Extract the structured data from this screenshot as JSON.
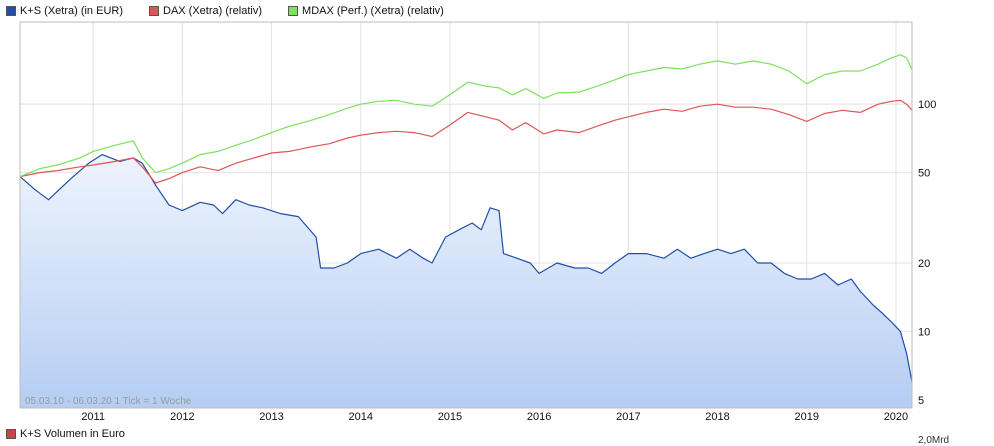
{
  "legend": [
    {
      "label": "K+S (Xetra) (in EUR)",
      "color": "#1f4fa6"
    },
    {
      "label": "DAX (Xetra) (relativ)",
      "color": "#e05555"
    },
    {
      "label": "MDAX (Perf.) (Xetra) (relativ)",
      "color": "#7ee05f"
    }
  ],
  "footnote": "05.03.10 - 06.03.20   1 Tick = 1 Woche",
  "volume_legend": {
    "label": "K+S Volumen in Euro",
    "color": "#c94444"
  },
  "volume_axis_tick": "2,0Mrd",
  "chart_data": {
    "type": "line",
    "y_scale": "log",
    "ylim": [
      4.6,
      230
    ],
    "y_ticks": [
      {
        "value": 5,
        "label": "5"
      },
      {
        "value": 10,
        "label": "10"
      },
      {
        "value": 20,
        "label": "20"
      },
      {
        "value": 50,
        "label": "50"
      },
      {
        "value": 100,
        "label": "100"
      }
    ],
    "xlim": [
      2010.18,
      2020.18
    ],
    "x_ticks": [
      {
        "value": 2011.0,
        "label": "2011"
      },
      {
        "value": 2012.0,
        "label": "2012"
      },
      {
        "value": 2013.0,
        "label": "2013"
      },
      {
        "value": 2014.0,
        "label": "2014"
      },
      {
        "value": 2015.0,
        "label": "2015"
      },
      {
        "value": 2016.0,
        "label": "2016"
      },
      {
        "value": 2017.0,
        "label": "2017"
      },
      {
        "value": 2018.0,
        "label": "2018"
      },
      {
        "value": 2019.0,
        "label": "2019"
      },
      {
        "value": 2020.0,
        "label": "2020"
      }
    ],
    "series": [
      {
        "name": "K+S (Xetra) (in EUR)",
        "color": "#1f4fa6",
        "area": true,
        "points": [
          [
            2010.18,
            48
          ],
          [
            2010.35,
            42
          ],
          [
            2010.5,
            38
          ],
          [
            2010.75,
            47
          ],
          [
            2010.95,
            55
          ],
          [
            2011.1,
            60
          ],
          [
            2011.3,
            56
          ],
          [
            2011.45,
            58
          ],
          [
            2011.55,
            55
          ],
          [
            2011.7,
            44
          ],
          [
            2011.85,
            36
          ],
          [
            2012.0,
            34
          ],
          [
            2012.2,
            37
          ],
          [
            2012.35,
            36
          ],
          [
            2012.45,
            33
          ],
          [
            2012.6,
            38
          ],
          [
            2012.75,
            36
          ],
          [
            2012.9,
            35
          ],
          [
            2013.1,
            33
          ],
          [
            2013.3,
            32
          ],
          [
            2013.5,
            26
          ],
          [
            2013.55,
            19
          ],
          [
            2013.7,
            19
          ],
          [
            2013.85,
            20
          ],
          [
            2014.0,
            22
          ],
          [
            2014.2,
            23
          ],
          [
            2014.4,
            21
          ],
          [
            2014.55,
            23
          ],
          [
            2014.7,
            21
          ],
          [
            2014.8,
            20
          ],
          [
            2014.95,
            26
          ],
          [
            2015.1,
            28
          ],
          [
            2015.25,
            30
          ],
          [
            2015.35,
            28
          ],
          [
            2015.45,
            35
          ],
          [
            2015.55,
            34
          ],
          [
            2015.6,
            22
          ],
          [
            2015.75,
            21
          ],
          [
            2015.9,
            20
          ],
          [
            2016.0,
            18
          ],
          [
            2016.2,
            20
          ],
          [
            2016.4,
            19
          ],
          [
            2016.55,
            19
          ],
          [
            2016.7,
            18
          ],
          [
            2016.85,
            20
          ],
          [
            2017.0,
            22
          ],
          [
            2017.2,
            22
          ],
          [
            2017.4,
            21
          ],
          [
            2017.55,
            23
          ],
          [
            2017.7,
            21
          ],
          [
            2017.85,
            22
          ],
          [
            2018.0,
            23
          ],
          [
            2018.15,
            22
          ],
          [
            2018.3,
            23
          ],
          [
            2018.45,
            20
          ],
          [
            2018.6,
            20
          ],
          [
            2018.75,
            18
          ],
          [
            2018.9,
            17
          ],
          [
            2019.05,
            17
          ],
          [
            2019.2,
            18
          ],
          [
            2019.35,
            16
          ],
          [
            2019.5,
            17
          ],
          [
            2019.6,
            15
          ],
          [
            2019.75,
            13
          ],
          [
            2019.85,
            12
          ],
          [
            2019.95,
            11
          ],
          [
            2020.05,
            10
          ],
          [
            2020.12,
            8
          ],
          [
            2020.18,
            6
          ]
        ]
      },
      {
        "name": "DAX (Xetra) (relativ)",
        "color": "#e05555",
        "area": false,
        "points": [
          [
            2010.18,
            48
          ],
          [
            2010.4,
            50
          ],
          [
            2010.6,
            51
          ],
          [
            2010.85,
            53
          ],
          [
            2011.0,
            54
          ],
          [
            2011.25,
            56
          ],
          [
            2011.45,
            58
          ],
          [
            2011.55,
            53
          ],
          [
            2011.7,
            45
          ],
          [
            2011.85,
            47
          ],
          [
            2012.0,
            50
          ],
          [
            2012.2,
            53
          ],
          [
            2012.4,
            51
          ],
          [
            2012.6,
            55
          ],
          [
            2012.8,
            58
          ],
          [
            2013.0,
            61
          ],
          [
            2013.2,
            62
          ],
          [
            2013.45,
            65
          ],
          [
            2013.65,
            67
          ],
          [
            2013.85,
            71
          ],
          [
            2014.0,
            73
          ],
          [
            2014.2,
            75
          ],
          [
            2014.4,
            76
          ],
          [
            2014.6,
            75
          ],
          [
            2014.8,
            72
          ],
          [
            2015.0,
            81
          ],
          [
            2015.2,
            92
          ],
          [
            2015.4,
            88
          ],
          [
            2015.55,
            85
          ],
          [
            2015.7,
            77
          ],
          [
            2015.85,
            83
          ],
          [
            2016.05,
            74
          ],
          [
            2016.2,
            77
          ],
          [
            2016.45,
            75
          ],
          [
            2016.65,
            80
          ],
          [
            2016.85,
            85
          ],
          [
            2017.0,
            88
          ],
          [
            2017.2,
            92
          ],
          [
            2017.4,
            95
          ],
          [
            2017.6,
            93
          ],
          [
            2017.8,
            98
          ],
          [
            2018.0,
            100
          ],
          [
            2018.2,
            97
          ],
          [
            2018.4,
            97
          ],
          [
            2018.6,
            95
          ],
          [
            2018.8,
            90
          ],
          [
            2019.0,
            84
          ],
          [
            2019.2,
            91
          ],
          [
            2019.4,
            94
          ],
          [
            2019.6,
            92
          ],
          [
            2019.8,
            100
          ],
          [
            2019.95,
            103
          ],
          [
            2020.05,
            104
          ],
          [
            2020.12,
            100
          ],
          [
            2020.18,
            94
          ]
        ]
      },
      {
        "name": "MDAX (Perf.) (Xetra) (relativ)",
        "color": "#7ee05f",
        "area": false,
        "points": [
          [
            2010.18,
            48
          ],
          [
            2010.4,
            52
          ],
          [
            2010.6,
            54
          ],
          [
            2010.85,
            58
          ],
          [
            2011.0,
            62
          ],
          [
            2011.25,
            66
          ],
          [
            2011.45,
            69
          ],
          [
            2011.55,
            58
          ],
          [
            2011.7,
            50
          ],
          [
            2011.85,
            52
          ],
          [
            2012.0,
            55
          ],
          [
            2012.2,
            60
          ],
          [
            2012.4,
            62
          ],
          [
            2012.6,
            66
          ],
          [
            2012.8,
            70
          ],
          [
            2013.0,
            75
          ],
          [
            2013.2,
            80
          ],
          [
            2013.45,
            85
          ],
          [
            2013.65,
            90
          ],
          [
            2013.85,
            96
          ],
          [
            2014.0,
            100
          ],
          [
            2014.2,
            103
          ],
          [
            2014.4,
            104
          ],
          [
            2014.6,
            100
          ],
          [
            2014.8,
            98
          ],
          [
            2015.0,
            110
          ],
          [
            2015.2,
            125
          ],
          [
            2015.4,
            120
          ],
          [
            2015.55,
            118
          ],
          [
            2015.7,
            110
          ],
          [
            2015.85,
            117
          ],
          [
            2016.05,
            106
          ],
          [
            2016.2,
            112
          ],
          [
            2016.45,
            113
          ],
          [
            2016.65,
            120
          ],
          [
            2016.85,
            128
          ],
          [
            2017.0,
            135
          ],
          [
            2017.2,
            140
          ],
          [
            2017.4,
            145
          ],
          [
            2017.6,
            143
          ],
          [
            2017.8,
            150
          ],
          [
            2018.0,
            155
          ],
          [
            2018.2,
            150
          ],
          [
            2018.4,
            155
          ],
          [
            2018.6,
            150
          ],
          [
            2018.8,
            140
          ],
          [
            2019.0,
            123
          ],
          [
            2019.2,
            135
          ],
          [
            2019.4,
            140
          ],
          [
            2019.6,
            140
          ],
          [
            2019.8,
            150
          ],
          [
            2019.95,
            160
          ],
          [
            2020.05,
            165
          ],
          [
            2020.12,
            160
          ],
          [
            2020.18,
            142
          ]
        ]
      }
    ]
  }
}
